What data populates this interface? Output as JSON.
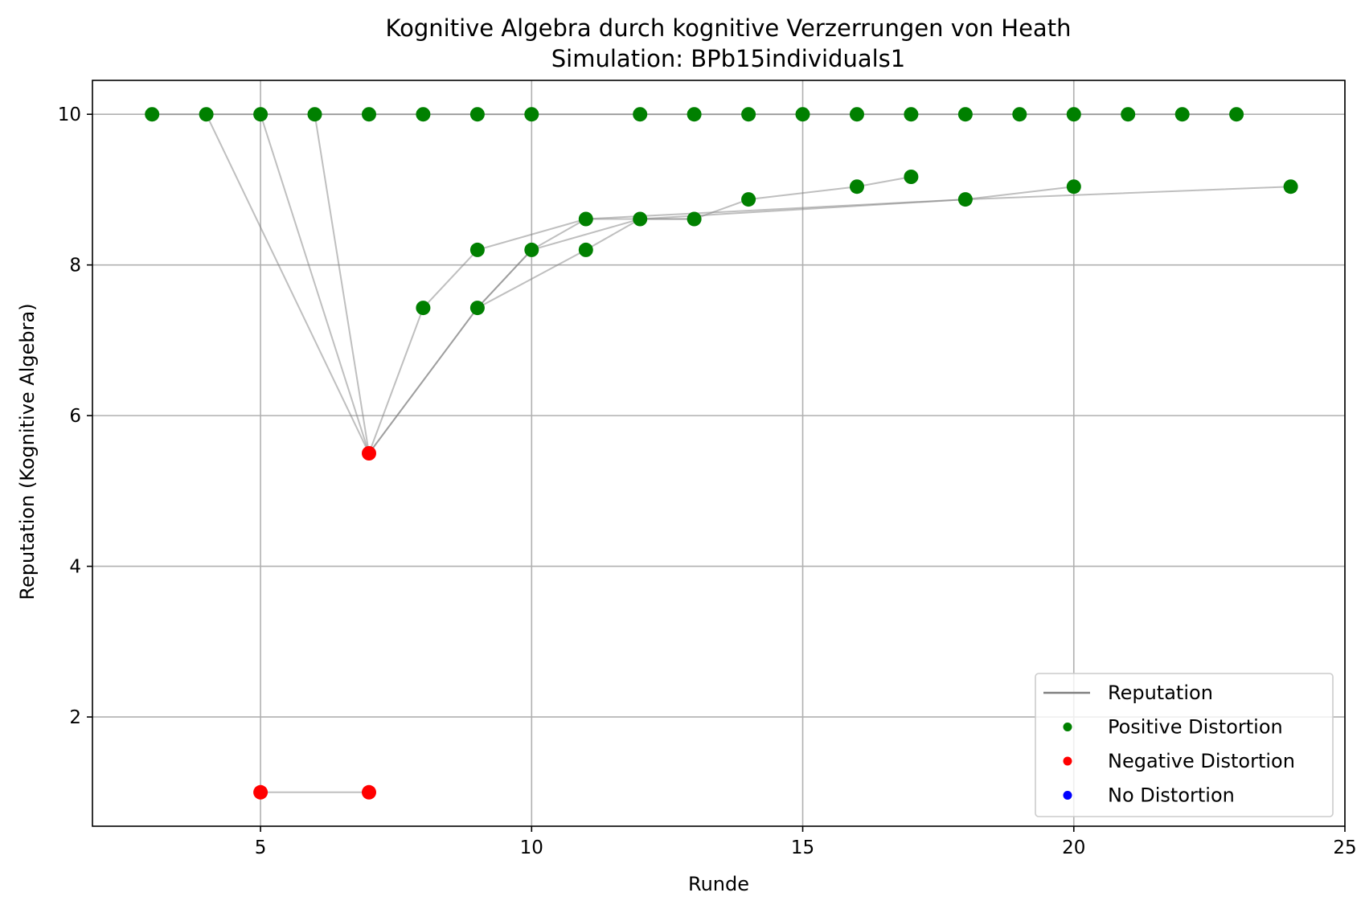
{
  "chart_data": {
    "type": "scatter",
    "title": "Kognitive Algebra durch kognitive Verzerrungen von Heath",
    "subtitle": "Simulation: BPb15individuals1",
    "xlabel": "Runde",
    "ylabel": "Reputation (Kognitive Algebra)",
    "xlim": [
      1.9,
      25.0
    ],
    "ylim": [
      0.55,
      10.45
    ],
    "xticks": [
      5,
      10,
      15,
      20,
      25
    ],
    "yticks": [
      2,
      4,
      6,
      8,
      10
    ],
    "grid": true,
    "legend_position": "bottom-right",
    "legend": [
      {
        "label": "Reputation",
        "kind": "line",
        "color": "#808080"
      },
      {
        "label": "Positive Distortion",
        "kind": "marker",
        "color": "#008000"
      },
      {
        "label": "Negative Distortion",
        "kind": "marker",
        "color": "#ff0000"
      },
      {
        "label": "No Distortion",
        "kind": "marker",
        "color": "#0000ff"
      }
    ],
    "line_color": "#808080",
    "paths": [
      [
        [
          3,
          10
        ],
        [
          4,
          10
        ],
        [
          5,
          10
        ],
        [
          6,
          10
        ],
        [
          7,
          10
        ],
        [
          8,
          10
        ],
        [
          9,
          10
        ],
        [
          10,
          10
        ]
      ],
      [
        [
          10,
          10
        ],
        [
          12,
          10
        ],
        [
          13,
          10
        ],
        [
          14,
          10
        ],
        [
          15,
          10
        ],
        [
          16,
          10
        ],
        [
          17,
          10
        ],
        [
          18,
          10
        ],
        [
          19,
          10
        ],
        [
          20,
          10
        ],
        [
          21,
          10
        ],
        [
          22,
          10
        ],
        [
          23,
          10
        ]
      ],
      [
        [
          4,
          10
        ],
        [
          7,
          5.5
        ]
      ],
      [
        [
          5,
          10
        ],
        [
          7,
          5.5
        ]
      ],
      [
        [
          6,
          10
        ],
        [
          7,
          5.5
        ]
      ],
      [
        [
          7,
          5.5
        ],
        [
          8,
          7.43
        ],
        [
          9,
          8.2
        ],
        [
          11,
          8.61
        ],
        [
          13,
          8.61
        ],
        [
          14,
          8.87
        ],
        [
          16,
          9.04
        ],
        [
          17,
          9.17
        ]
      ],
      [
        [
          7,
          5.5
        ],
        [
          9,
          7.43
        ],
        [
          10,
          8.2
        ],
        [
          11,
          8.61
        ],
        [
          18,
          8.87
        ],
        [
          20,
          9.04
        ]
      ],
      [
        [
          7,
          5.5
        ],
        [
          9,
          7.43
        ],
        [
          10,
          8.2
        ],
        [
          12,
          8.61
        ],
        [
          18,
          8.87
        ],
        [
          24,
          9.04
        ]
      ],
      [
        [
          9,
          7.43
        ],
        [
          11,
          8.2
        ],
        [
          12,
          8.61
        ],
        [
          13,
          8.61
        ]
      ],
      [
        [
          5,
          1
        ],
        [
          7,
          1
        ]
      ]
    ],
    "series": [
      {
        "name": "Positive Distortion",
        "color": "#008000",
        "points": [
          [
            3,
            10
          ],
          [
            4,
            10
          ],
          [
            5,
            10
          ],
          [
            6,
            10
          ],
          [
            7,
            10
          ],
          [
            8,
            10
          ],
          [
            9,
            10
          ],
          [
            10,
            10
          ],
          [
            12,
            10
          ],
          [
            13,
            10
          ],
          [
            14,
            10
          ],
          [
            15,
            10
          ],
          [
            16,
            10
          ],
          [
            17,
            10
          ],
          [
            18,
            10
          ],
          [
            19,
            10
          ],
          [
            20,
            10
          ],
          [
            21,
            10
          ],
          [
            22,
            10
          ],
          [
            23,
            10
          ],
          [
            8,
            7.43
          ],
          [
            9,
            7.43
          ],
          [
            9,
            8.2
          ],
          [
            10,
            8.2
          ],
          [
            11,
            8.2
          ],
          [
            11,
            8.61
          ],
          [
            12,
            8.61
          ],
          [
            13,
            8.61
          ],
          [
            14,
            8.87
          ],
          [
            18,
            8.87
          ],
          [
            16,
            9.04
          ],
          [
            20,
            9.04
          ],
          [
            24,
            9.04
          ],
          [
            17,
            9.17
          ]
        ]
      },
      {
        "name": "Negative Distortion",
        "color": "#ff0000",
        "points": [
          [
            7,
            5.5
          ],
          [
            5,
            1
          ],
          [
            7,
            1
          ]
        ]
      },
      {
        "name": "No Distortion",
        "color": "#0000ff",
        "points": []
      }
    ]
  }
}
